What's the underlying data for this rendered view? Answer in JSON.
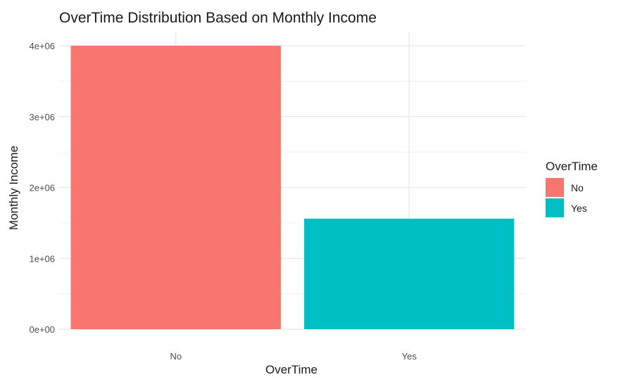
{
  "chart_data": {
    "type": "bar",
    "title": "OverTime Distribution Based on Monthly Income",
    "xlabel": "OverTime",
    "ylabel": "Monthly Income",
    "categories": [
      "No",
      "Yes"
    ],
    "values": [
      4000000,
      1560000
    ],
    "colors": [
      "#F8766D",
      "#00BFC4"
    ],
    "ylim": [
      0,
      4000000
    ],
    "y_ticks": [
      0,
      1000000,
      2000000,
      3000000,
      4000000
    ],
    "y_tick_labels": [
      "0e+00",
      "1e+06",
      "2e+06",
      "3e+06",
      "4e+06"
    ],
    "grid": true,
    "legend": {
      "title": "OverTime",
      "position": "right",
      "entries": [
        "No",
        "Yes"
      ]
    }
  }
}
